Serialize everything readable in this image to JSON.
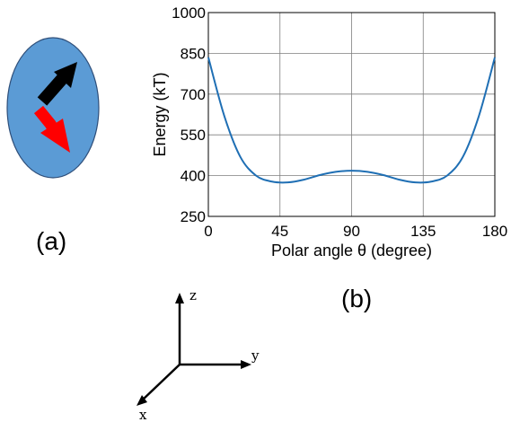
{
  "panel_a": {
    "label": "(a)",
    "ellipse_color": "#5b9bd5",
    "arrow_black_color": "#000000",
    "arrow_red_color": "#ff0000"
  },
  "panel_b_label": "(b)",
  "coordinate_axes": {
    "x_label": "x",
    "y_label": "y",
    "z_label": "z"
  },
  "chart_data": {
    "type": "line",
    "title": "",
    "xlabel": "Polar angle θ (degree)",
    "ylabel": "Energy (kT)",
    "xlim": [
      0,
      180
    ],
    "ylim": [
      250,
      1000
    ],
    "xticks": [
      0,
      45,
      90,
      135,
      180
    ],
    "yticks": [
      250,
      400,
      550,
      700,
      850,
      1000
    ],
    "grid": true,
    "line_color": "#1f6fb4",
    "series": [
      {
        "x": [
          0,
          10,
          20,
          30,
          40,
          50,
          60,
          70,
          80,
          90,
          100,
          110,
          120,
          130,
          140,
          150,
          160,
          170,
          180
        ],
        "y": [
          835,
          620,
          470,
          400,
          378,
          375,
          385,
          402,
          414,
          418,
          414,
          402,
          385,
          375,
          378,
          400,
          470,
          620,
          835
        ]
      }
    ]
  }
}
